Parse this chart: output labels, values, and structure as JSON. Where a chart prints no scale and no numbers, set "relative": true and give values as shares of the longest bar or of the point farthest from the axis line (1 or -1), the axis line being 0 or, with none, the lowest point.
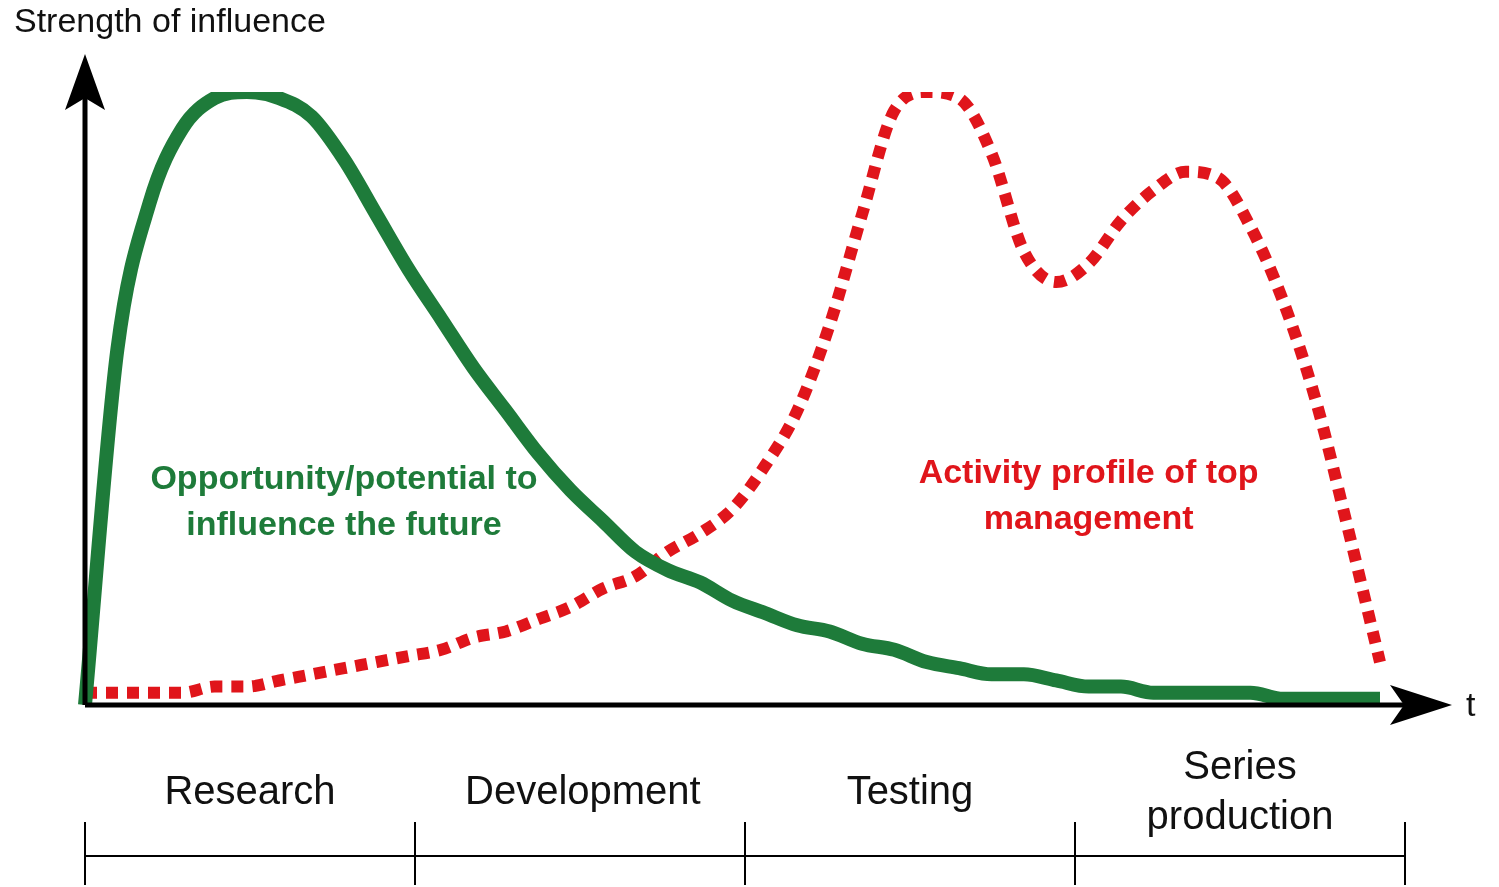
{
  "chart_data": {
    "type": "line",
    "relative": true,
    "ylabel": "Strength of influence",
    "xlabel": "t",
    "marker": "none",
    "categories": [
      null,
      null,
      null,
      null,
      null,
      null,
      null,
      null,
      null,
      null,
      null,
      null,
      null,
      null,
      null,
      null,
      null,
      null,
      null,
      null,
      null,
      null,
      null,
      null,
      null,
      null,
      null,
      null,
      null,
      null,
      null,
      null,
      null,
      null,
      null,
      null,
      null,
      null,
      null,
      null,
      null
    ],
    "series": [
      {
        "name": "Opportunity/potential to influence the future",
        "color": "#1e7b3a",
        "line_style": "solid",
        "values": [
          0,
          0.58,
          0.82,
          0.94,
          0.99,
          1,
          0.99,
          0.96,
          0.89,
          0.8,
          0.71,
          0.63,
          0.55,
          0.48,
          0.41,
          0.35,
          0.3,
          0.25,
          0.22,
          0.2,
          0.17,
          0.15,
          0.13,
          0.12,
          0.1,
          0.09,
          0.07,
          0.06,
          0.05,
          0.05,
          0.04,
          0.03,
          0.03,
          0.02,
          0.02,
          0.02,
          0.02,
          0.01,
          0.01,
          0.01,
          0.01
        ]
      },
      {
        "name": "Activity profile of top management",
        "color": "#e0151b",
        "line_style": "dotted",
        "values": [
          0.02,
          0.02,
          0.02,
          0.02,
          0.03,
          0.03,
          0.04,
          0.05,
          0.06,
          0.07,
          0.08,
          0.09,
          0.11,
          0.12,
          0.14,
          0.16,
          0.19,
          0.21,
          0.25,
          0.28,
          0.32,
          0.39,
          0.48,
          0.62,
          0.8,
          0.97,
          1,
          0.99,
          0.9,
          0.74,
          0.69,
          0.72,
          0.79,
          0.84,
          0.87,
          0.86,
          0.78,
          0.66,
          0.5,
          0.29,
          0.07
        ]
      }
    ],
    "annotations": [
      "Research",
      "Development",
      "Testing",
      "Series production"
    ]
  }
}
